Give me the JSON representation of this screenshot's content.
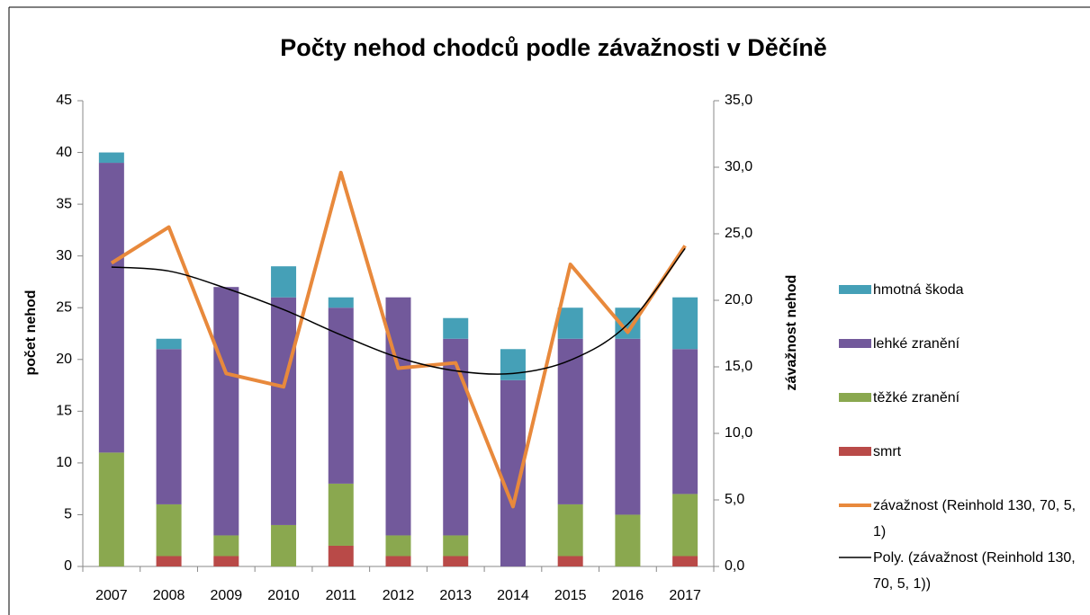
{
  "chart_data": {
    "type": "bar",
    "stacked": true,
    "title": "Počty nehod chodců podle závažnosti v Děčíně",
    "ylabel": "počet nehod",
    "y2label": "závažnost nehod",
    "categories": [
      "2007",
      "2008",
      "2009",
      "2010",
      "2011",
      "2012",
      "2013",
      "2014",
      "2015",
      "2016",
      "2017"
    ],
    "series": [
      {
        "name": "smrt",
        "type": "bar",
        "color": "#b94a48",
        "values": [
          0,
          1,
          1,
          0,
          2,
          1,
          1,
          0,
          1,
          0,
          1
        ]
      },
      {
        "name": "těžké zranění",
        "type": "bar",
        "color": "#8aa84f",
        "values": [
          11,
          5,
          2,
          4,
          6,
          2,
          2,
          0,
          5,
          5,
          6
        ]
      },
      {
        "name": "lehké zranění",
        "type": "bar",
        "color": "#72599b",
        "values": [
          28,
          15,
          24,
          22,
          17,
          23,
          19,
          18,
          16,
          17,
          14
        ]
      },
      {
        "name": "hmotná škoda",
        "type": "bar",
        "color": "#45a0b7",
        "values": [
          1,
          1,
          0,
          3,
          1,
          0,
          2,
          3,
          3,
          3,
          5
        ]
      },
      {
        "name": "závažnost (Reinhold 130, 70, 5, 1)",
        "type": "line",
        "axis": "y2",
        "color": "#e8893c",
        "width": 4,
        "values": [
          22.8,
          25.5,
          14.5,
          13.5,
          29.6,
          14.9,
          15.3,
          4.5,
          22.7,
          17.6,
          24.1
        ]
      },
      {
        "name": "Poly. (závažnost (Reinhold 130, 70, 5, 1))",
        "type": "line",
        "axis": "y2",
        "smooth": true,
        "color": "#000000",
        "width": 1.5,
        "values": [
          22.5,
          22.2,
          20.9,
          19.3,
          17.4,
          15.7,
          14.7,
          14.5,
          15.5,
          18.2,
          23.9
        ]
      }
    ],
    "ylim": [
      0,
      45
    ],
    "yticks": [
      0,
      5,
      10,
      15,
      20,
      25,
      30,
      35,
      40,
      45
    ],
    "y2lim": [
      0,
      35
    ],
    "y2ticks": [
      {
        "value": 0,
        "label": "0,0"
      },
      {
        "value": 5,
        "label": "5,0"
      },
      {
        "value": 10,
        "label": "10,0"
      },
      {
        "value": 15,
        "label": "15,0"
      },
      {
        "value": 20,
        "label": "20,0"
      },
      {
        "value": 25,
        "label": "25,0"
      },
      {
        "value": 30,
        "label": "30,0"
      },
      {
        "value": 35,
        "label": "35,0"
      }
    ],
    "grid": false,
    "legend": "right"
  }
}
